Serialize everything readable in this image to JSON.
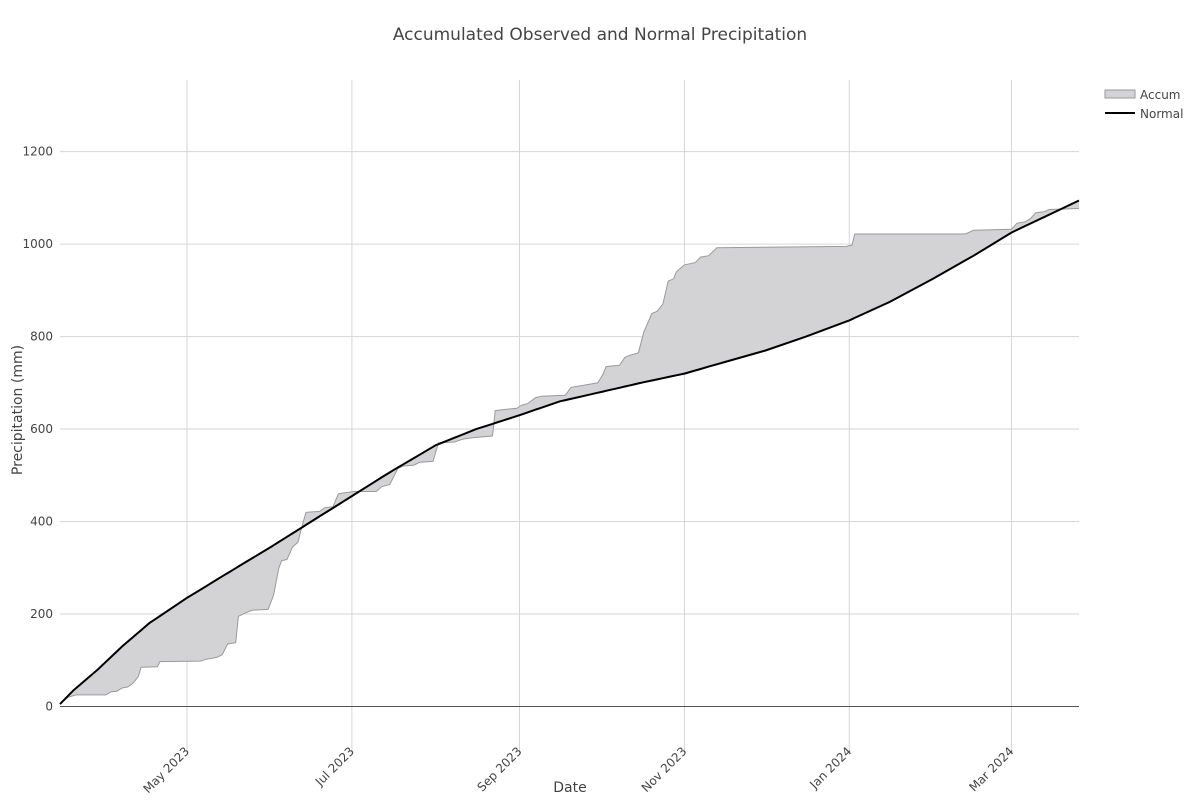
{
  "chart_data": {
    "type": "area",
    "title": "Accumulated Observed and Normal Precipitation",
    "xlabel": "Date",
    "ylabel": "Precipitation (mm)",
    "xlim": [
      "2023-03-15",
      "2024-03-26"
    ],
    "ylim": [
      -105,
      1355
    ],
    "x_tick_labels": [
      "May 2023",
      "Jul 2023",
      "Sep 2023",
      "Nov 2023",
      "Jan 2024",
      "Mar 2024"
    ],
    "x_tick_dates": [
      "2023-05-01",
      "2023-07-01",
      "2023-09-01",
      "2023-11-01",
      "2024-01-01",
      "2024-03-01"
    ],
    "y_ticks": [
      0,
      200,
      400,
      600,
      800,
      1000,
      1200
    ],
    "grid": true,
    "legend_position": "top-right",
    "colors": {
      "accum_fill": "#d3d3d5",
      "accum_line": "#9a9a9a",
      "normal": "#000000",
      "grid": "#d6d6d6",
      "zero_line": "#555555"
    },
    "series": [
      {
        "name": "Accum",
        "kind": "area",
        "points": [
          [
            "2023-03-15",
            5
          ],
          [
            "2023-03-18",
            20
          ],
          [
            "2023-03-21",
            25
          ],
          [
            "2023-04-01",
            25
          ],
          [
            "2023-04-03",
            32
          ],
          [
            "2023-04-05",
            33
          ],
          [
            "2023-04-07",
            40
          ],
          [
            "2023-04-09",
            42
          ],
          [
            "2023-04-11",
            50
          ],
          [
            "2023-04-13",
            65
          ],
          [
            "2023-04-14",
            85
          ],
          [
            "2023-04-20",
            86
          ],
          [
            "2023-04-21",
            97
          ],
          [
            "2023-05-06",
            98
          ],
          [
            "2023-05-08",
            102
          ],
          [
            "2023-05-12",
            106
          ],
          [
            "2023-05-14",
            112
          ],
          [
            "2023-05-16",
            135
          ],
          [
            "2023-05-19",
            138
          ],
          [
            "2023-05-20",
            195
          ],
          [
            "2023-05-23",
            203
          ],
          [
            "2023-05-25",
            208
          ],
          [
            "2023-05-31",
            210
          ],
          [
            "2023-06-02",
            240
          ],
          [
            "2023-06-04",
            300
          ],
          [
            "2023-06-05",
            315
          ],
          [
            "2023-06-07",
            318
          ],
          [
            "2023-06-09",
            345
          ],
          [
            "2023-06-11",
            355
          ],
          [
            "2023-06-13",
            400
          ],
          [
            "2023-06-14",
            420
          ],
          [
            "2023-06-19",
            422
          ],
          [
            "2023-06-21",
            430
          ],
          [
            "2023-06-24",
            432
          ],
          [
            "2023-06-26",
            460
          ],
          [
            "2023-06-28",
            462
          ],
          [
            "2023-07-02",
            465
          ],
          [
            "2023-07-10",
            465
          ],
          [
            "2023-07-12",
            475
          ],
          [
            "2023-07-15",
            480
          ],
          [
            "2023-07-18",
            515
          ],
          [
            "2023-07-20",
            520
          ],
          [
            "2023-07-24",
            522
          ],
          [
            "2023-07-26",
            528
          ],
          [
            "2023-07-31",
            530
          ],
          [
            "2023-08-02",
            570
          ],
          [
            "2023-08-08",
            572
          ],
          [
            "2023-08-11",
            578
          ],
          [
            "2023-08-13",
            580
          ],
          [
            "2023-08-16",
            582
          ],
          [
            "2023-08-22",
            585
          ],
          [
            "2023-08-23",
            640
          ],
          [
            "2023-08-26",
            642
          ],
          [
            "2023-08-31",
            645
          ],
          [
            "2023-09-02",
            652
          ],
          [
            "2023-09-04",
            655
          ],
          [
            "2023-09-07",
            668
          ],
          [
            "2023-09-09",
            671
          ],
          [
            "2023-09-18",
            673
          ],
          [
            "2023-09-20",
            690
          ],
          [
            "2023-09-25",
            695
          ],
          [
            "2023-09-30",
            700
          ],
          [
            "2023-10-02",
            720
          ],
          [
            "2023-10-03",
            735
          ],
          [
            "2023-10-08",
            738
          ],
          [
            "2023-10-10",
            755
          ],
          [
            "2023-10-12",
            760
          ],
          [
            "2023-10-15",
            765
          ],
          [
            "2023-10-17",
            810
          ],
          [
            "2023-10-20",
            850
          ],
          [
            "2023-10-22",
            855
          ],
          [
            "2023-10-24",
            870
          ],
          [
            "2023-10-26",
            920
          ],
          [
            "2023-10-28",
            925
          ],
          [
            "2023-10-29",
            940
          ],
          [
            "2023-11-01",
            955
          ],
          [
            "2023-11-05",
            960
          ],
          [
            "2023-11-07",
            972
          ],
          [
            "2023-11-10",
            975
          ],
          [
            "2023-11-13",
            992
          ],
          [
            "2023-12-31",
            995
          ],
          [
            "2024-01-02",
            998
          ],
          [
            "2024-01-03",
            1022
          ],
          [
            "2024-02-13",
            1022
          ],
          [
            "2024-02-16",
            1030
          ],
          [
            "2024-03-01",
            1032
          ],
          [
            "2024-03-03",
            1045
          ],
          [
            "2024-03-06",
            1048
          ],
          [
            "2024-03-08",
            1055
          ],
          [
            "2024-03-10",
            1068
          ],
          [
            "2024-03-13",
            1070
          ],
          [
            "2024-03-15",
            1075
          ],
          [
            "2024-03-26",
            1077
          ]
        ]
      },
      {
        "name": "Normal",
        "kind": "line",
        "points": [
          [
            "2023-03-15",
            5
          ],
          [
            "2023-03-20",
            35
          ],
          [
            "2023-03-29",
            80
          ],
          [
            "2023-04-07",
            130
          ],
          [
            "2023-04-17",
            180
          ],
          [
            "2023-05-01",
            235
          ],
          [
            "2023-05-15",
            285
          ],
          [
            "2023-06-01",
            345
          ],
          [
            "2023-06-16",
            400
          ],
          [
            "2023-07-01",
            455
          ],
          [
            "2023-07-16",
            510
          ],
          [
            "2023-08-01",
            565
          ],
          [
            "2023-08-16",
            600
          ],
          [
            "2023-09-01",
            630
          ],
          [
            "2023-09-16",
            660
          ],
          [
            "2023-10-01",
            680
          ],
          [
            "2023-10-16",
            700
          ],
          [
            "2023-11-01",
            720
          ],
          [
            "2023-11-16",
            745
          ],
          [
            "2023-12-01",
            770
          ],
          [
            "2023-12-16",
            800
          ],
          [
            "2024-01-01",
            835
          ],
          [
            "2024-01-16",
            875
          ],
          [
            "2024-02-01",
            925
          ],
          [
            "2024-02-16",
            975
          ],
          [
            "2024-03-01",
            1025
          ],
          [
            "2024-03-10",
            1050
          ]
        ]
      }
    ]
  }
}
